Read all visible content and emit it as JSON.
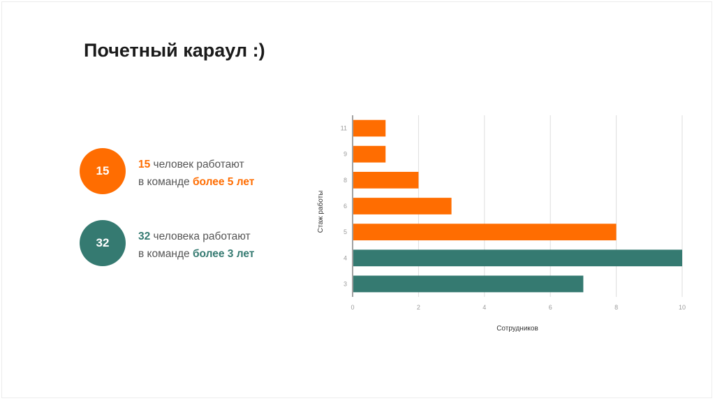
{
  "title": "Почетный караул :)",
  "colors": {
    "orange": "#ff6d01",
    "teal": "#357a71"
  },
  "stats": [
    {
      "badge": "15",
      "num": "15",
      "line1_rest": " человек работают",
      "line2_prefix": "в команде ",
      "line2_emph": "более 5 лет",
      "color": "#ff6d01"
    },
    {
      "badge": "32",
      "num": "32",
      "line1_rest": " человека работают",
      "line2_prefix": "в команде ",
      "line2_emph": "более 3 лет",
      "color": "#357a71"
    }
  ],
  "chart_data": {
    "type": "bar",
    "orientation": "horizontal",
    "categories": [
      "11",
      "9",
      "8",
      "6",
      "5",
      "4",
      "3"
    ],
    "values": [
      1,
      1,
      2,
      3,
      8,
      10,
      7
    ],
    "bar_colors": [
      "#ff6d01",
      "#ff6d01",
      "#ff6d01",
      "#ff6d01",
      "#ff6d01",
      "#357a71",
      "#357a71"
    ],
    "xlabel": "Сотрудников",
    "ylabel": "Стаж работы",
    "xlim": [
      0,
      10
    ],
    "xticks": [
      0,
      2,
      4,
      6,
      8,
      10
    ],
    "grid": true,
    "legend": "none"
  }
}
